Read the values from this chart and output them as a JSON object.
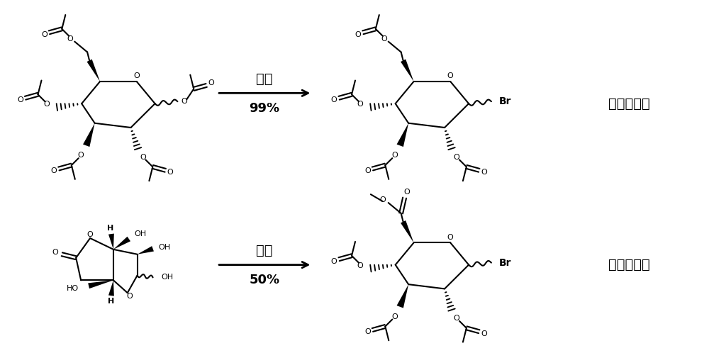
{
  "background_color": "#ffffff",
  "figsize": [
    10.0,
    4.98
  ],
  "dpi": 100,
  "reaction1_step": "单步",
  "reaction1_yield": "99%",
  "reaction1_product": "半乳糖基溴",
  "reaction2_step": "两步",
  "reaction2_yield": "50%",
  "reaction2_product": "葡糖醛酸溴",
  "line_color": "#000000",
  "lw": 1.5
}
